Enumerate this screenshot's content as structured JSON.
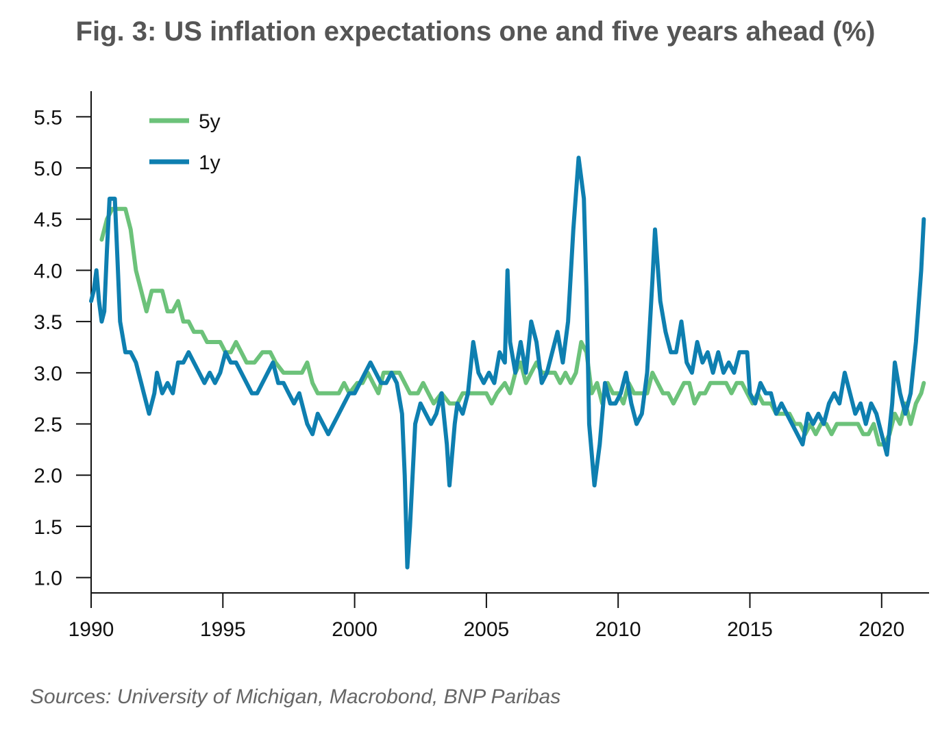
{
  "chart_data": {
    "type": "line",
    "title": "Fig. 3: US inflation expectations one and five years ahead (%)",
    "source": "Sources: University of Michigan, Macrobond, BNP Paribas",
    "xlim": [
      1990,
      2021.8
    ],
    "ylim": [
      0.85,
      5.75
    ],
    "x_ticks": [
      "1990",
      "1995",
      "2000",
      "2005",
      "2010",
      "2015",
      "2020"
    ],
    "y_ticks": [
      "1.0",
      "1.5",
      "2.0",
      "2.5",
      "3.0",
      "3.5",
      "4.0",
      "4.5",
      "5.0",
      "5.5"
    ],
    "grid": false,
    "legend_position": "top-left",
    "series": [
      {
        "name": "5y",
        "color": "#6cc27a",
        "points": [
          [
            1990.4,
            4.3
          ],
          [
            1990.6,
            4.5
          ],
          [
            1990.8,
            4.6
          ],
          [
            1991.0,
            4.6
          ],
          [
            1991.3,
            4.6
          ],
          [
            1991.5,
            4.4
          ],
          [
            1991.7,
            4.0
          ],
          [
            1991.9,
            3.8
          ],
          [
            1992.1,
            3.6
          ],
          [
            1992.3,
            3.8
          ],
          [
            1992.5,
            3.8
          ],
          [
            1992.7,
            3.8
          ],
          [
            1992.9,
            3.6
          ],
          [
            1993.1,
            3.6
          ],
          [
            1993.3,
            3.7
          ],
          [
            1993.5,
            3.5
          ],
          [
            1993.7,
            3.5
          ],
          [
            1993.9,
            3.4
          ],
          [
            1994.2,
            3.4
          ],
          [
            1994.4,
            3.3
          ],
          [
            1994.6,
            3.3
          ],
          [
            1994.9,
            3.3
          ],
          [
            1995.1,
            3.2
          ],
          [
            1995.3,
            3.2
          ],
          [
            1995.5,
            3.3
          ],
          [
            1995.7,
            3.2
          ],
          [
            1995.9,
            3.1
          ],
          [
            1996.2,
            3.1
          ],
          [
            1996.5,
            3.2
          ],
          [
            1996.8,
            3.2
          ],
          [
            1997.0,
            3.1
          ],
          [
            1997.3,
            3.0
          ],
          [
            1997.7,
            3.0
          ],
          [
            1998.0,
            3.0
          ],
          [
            1998.2,
            3.1
          ],
          [
            1998.4,
            2.9
          ],
          [
            1998.6,
            2.8
          ],
          [
            1998.9,
            2.8
          ],
          [
            1999.1,
            2.8
          ],
          [
            1999.4,
            2.8
          ],
          [
            1999.6,
            2.9
          ],
          [
            1999.8,
            2.8
          ],
          [
            2000.1,
            2.9
          ],
          [
            2000.3,
            2.9
          ],
          [
            2000.5,
            3.0
          ],
          [
            2000.7,
            2.9
          ],
          [
            2000.9,
            2.8
          ],
          [
            2001.1,
            3.0
          ],
          [
            2001.4,
            3.0
          ],
          [
            2001.7,
            3.0
          ],
          [
            2001.9,
            2.9
          ],
          [
            2002.1,
            2.8
          ],
          [
            2002.4,
            2.8
          ],
          [
            2002.6,
            2.9
          ],
          [
            2002.8,
            2.8
          ],
          [
            2003.0,
            2.7
          ],
          [
            2003.3,
            2.8
          ],
          [
            2003.6,
            2.7
          ],
          [
            2003.9,
            2.7
          ],
          [
            2004.1,
            2.8
          ],
          [
            2004.4,
            2.8
          ],
          [
            2004.7,
            2.8
          ],
          [
            2005.0,
            2.8
          ],
          [
            2005.2,
            2.7
          ],
          [
            2005.4,
            2.8
          ],
          [
            2005.7,
            2.9
          ],
          [
            2005.9,
            2.8
          ],
          [
            2006.1,
            3.0
          ],
          [
            2006.3,
            3.1
          ],
          [
            2006.5,
            2.9
          ],
          [
            2006.7,
            3.0
          ],
          [
            2006.9,
            3.1
          ],
          [
            2007.1,
            3.0
          ],
          [
            2007.4,
            3.0
          ],
          [
            2007.6,
            3.0
          ],
          [
            2007.8,
            2.9
          ],
          [
            2008.0,
            3.0
          ],
          [
            2008.2,
            2.9
          ],
          [
            2008.4,
            3.0
          ],
          [
            2008.6,
            3.3
          ],
          [
            2008.8,
            3.2
          ],
          [
            2009.0,
            2.8
          ],
          [
            2009.2,
            2.9
          ],
          [
            2009.4,
            2.7
          ],
          [
            2009.6,
            2.9
          ],
          [
            2009.8,
            2.8
          ],
          [
            2010.0,
            2.8
          ],
          [
            2010.2,
            2.7
          ],
          [
            2010.4,
            2.9
          ],
          [
            2010.6,
            2.8
          ],
          [
            2010.9,
            2.8
          ],
          [
            2011.1,
            2.8
          ],
          [
            2011.3,
            3.0
          ],
          [
            2011.5,
            2.9
          ],
          [
            2011.7,
            2.8
          ],
          [
            2011.9,
            2.8
          ],
          [
            2012.1,
            2.7
          ],
          [
            2012.3,
            2.8
          ],
          [
            2012.5,
            2.9
          ],
          [
            2012.7,
            2.9
          ],
          [
            2012.9,
            2.7
          ],
          [
            2013.1,
            2.8
          ],
          [
            2013.3,
            2.8
          ],
          [
            2013.5,
            2.9
          ],
          [
            2013.8,
            2.9
          ],
          [
            2014.1,
            2.9
          ],
          [
            2014.3,
            2.8
          ],
          [
            2014.5,
            2.9
          ],
          [
            2014.7,
            2.9
          ],
          [
            2014.9,
            2.8
          ],
          [
            2015.1,
            2.7
          ],
          [
            2015.3,
            2.8
          ],
          [
            2015.5,
            2.7
          ],
          [
            2015.8,
            2.7
          ],
          [
            2016.0,
            2.6
          ],
          [
            2016.2,
            2.6
          ],
          [
            2016.5,
            2.6
          ],
          [
            2016.7,
            2.5
          ],
          [
            2016.9,
            2.5
          ],
          [
            2017.1,
            2.4
          ],
          [
            2017.3,
            2.5
          ],
          [
            2017.5,
            2.4
          ],
          [
            2017.7,
            2.5
          ],
          [
            2017.9,
            2.5
          ],
          [
            2018.1,
            2.4
          ],
          [
            2018.3,
            2.5
          ],
          [
            2018.6,
            2.5
          ],
          [
            2018.9,
            2.5
          ],
          [
            2019.1,
            2.5
          ],
          [
            2019.3,
            2.4
          ],
          [
            2019.5,
            2.4
          ],
          [
            2019.7,
            2.5
          ],
          [
            2019.9,
            2.3
          ],
          [
            2020.1,
            2.3
          ],
          [
            2020.3,
            2.4
          ],
          [
            2020.5,
            2.6
          ],
          [
            2020.7,
            2.5
          ],
          [
            2020.9,
            2.7
          ],
          [
            2021.1,
            2.5
          ],
          [
            2021.3,
            2.7
          ],
          [
            2021.5,
            2.8
          ],
          [
            2021.6,
            2.9
          ]
        ]
      },
      {
        "name": "1y",
        "color": "#0e7fb0",
        "points": [
          [
            1990.0,
            3.7
          ],
          [
            1990.1,
            3.8
          ],
          [
            1990.2,
            4.0
          ],
          [
            1990.3,
            3.7
          ],
          [
            1990.4,
            3.5
          ],
          [
            1990.5,
            3.6
          ],
          [
            1990.6,
            4.2
          ],
          [
            1990.7,
            4.7
          ],
          [
            1990.9,
            4.7
          ],
          [
            1991.0,
            4.1
          ],
          [
            1991.1,
            3.5
          ],
          [
            1991.3,
            3.2
          ],
          [
            1991.5,
            3.2
          ],
          [
            1991.7,
            3.1
          ],
          [
            1991.9,
            2.9
          ],
          [
            1992.0,
            2.8
          ],
          [
            1992.2,
            2.6
          ],
          [
            1992.4,
            2.8
          ],
          [
            1992.5,
            3.0
          ],
          [
            1992.7,
            2.8
          ],
          [
            1992.9,
            2.9
          ],
          [
            1993.1,
            2.8
          ],
          [
            1993.3,
            3.1
          ],
          [
            1993.5,
            3.1
          ],
          [
            1993.7,
            3.2
          ],
          [
            1993.9,
            3.1
          ],
          [
            1994.1,
            3.0
          ],
          [
            1994.3,
            2.9
          ],
          [
            1994.5,
            3.0
          ],
          [
            1994.7,
            2.9
          ],
          [
            1994.9,
            3.0
          ],
          [
            1995.1,
            3.2
          ],
          [
            1995.3,
            3.1
          ],
          [
            1995.5,
            3.1
          ],
          [
            1995.7,
            3.0
          ],
          [
            1995.9,
            2.9
          ],
          [
            1996.1,
            2.8
          ],
          [
            1996.3,
            2.8
          ],
          [
            1996.5,
            2.9
          ],
          [
            1996.7,
            3.0
          ],
          [
            1996.9,
            3.1
          ],
          [
            1997.1,
            2.9
          ],
          [
            1997.3,
            2.9
          ],
          [
            1997.5,
            2.8
          ],
          [
            1997.7,
            2.7
          ],
          [
            1997.9,
            2.8
          ],
          [
            1998.1,
            2.6
          ],
          [
            1998.2,
            2.5
          ],
          [
            1998.4,
            2.4
          ],
          [
            1998.6,
            2.6
          ],
          [
            1998.8,
            2.5
          ],
          [
            1999.0,
            2.4
          ],
          [
            1999.2,
            2.5
          ],
          [
            1999.4,
            2.6
          ],
          [
            1999.6,
            2.7
          ],
          [
            1999.8,
            2.8
          ],
          [
            2000.0,
            2.8
          ],
          [
            2000.2,
            2.9
          ],
          [
            2000.4,
            3.0
          ],
          [
            2000.6,
            3.1
          ],
          [
            2000.8,
            3.0
          ],
          [
            2001.0,
            2.9
          ],
          [
            2001.2,
            2.9
          ],
          [
            2001.4,
            3.0
          ],
          [
            2001.6,
            2.9
          ],
          [
            2001.8,
            2.6
          ],
          [
            2001.9,
            2.0
          ],
          [
            2002.0,
            1.1
          ],
          [
            2002.1,
            1.5
          ],
          [
            2002.3,
            2.5
          ],
          [
            2002.5,
            2.7
          ],
          [
            2002.7,
            2.6
          ],
          [
            2002.9,
            2.5
          ],
          [
            2003.1,
            2.6
          ],
          [
            2003.3,
            2.8
          ],
          [
            2003.5,
            2.3
          ],
          [
            2003.6,
            1.9
          ],
          [
            2003.8,
            2.5
          ],
          [
            2003.9,
            2.7
          ],
          [
            2004.1,
            2.6
          ],
          [
            2004.3,
            2.8
          ],
          [
            2004.5,
            3.3
          ],
          [
            2004.7,
            3.0
          ],
          [
            2004.9,
            2.9
          ],
          [
            2005.1,
            3.0
          ],
          [
            2005.3,
            2.9
          ],
          [
            2005.5,
            3.2
          ],
          [
            2005.7,
            3.1
          ],
          [
            2005.8,
            4.0
          ],
          [
            2005.9,
            3.3
          ],
          [
            2006.1,
            3.0
          ],
          [
            2006.3,
            3.3
          ],
          [
            2006.5,
            3.0
          ],
          [
            2006.7,
            3.5
          ],
          [
            2006.9,
            3.3
          ],
          [
            2007.1,
            2.9
          ],
          [
            2007.3,
            3.0
          ],
          [
            2007.5,
            3.2
          ],
          [
            2007.7,
            3.4
          ],
          [
            2007.9,
            3.1
          ],
          [
            2008.1,
            3.5
          ],
          [
            2008.3,
            4.4
          ],
          [
            2008.5,
            5.1
          ],
          [
            2008.7,
            4.7
          ],
          [
            2008.8,
            3.8
          ],
          [
            2008.9,
            2.5
          ],
          [
            2009.1,
            1.9
          ],
          [
            2009.3,
            2.3
          ],
          [
            2009.5,
            2.9
          ],
          [
            2009.7,
            2.7
          ],
          [
            2009.9,
            2.7
          ],
          [
            2010.1,
            2.8
          ],
          [
            2010.3,
            3.0
          ],
          [
            2010.5,
            2.7
          ],
          [
            2010.7,
            2.5
          ],
          [
            2010.9,
            2.6
          ],
          [
            2011.1,
            3.0
          ],
          [
            2011.3,
            3.9
          ],
          [
            2011.4,
            4.4
          ],
          [
            2011.6,
            3.7
          ],
          [
            2011.8,
            3.4
          ],
          [
            2012.0,
            3.2
          ],
          [
            2012.2,
            3.2
          ],
          [
            2012.4,
            3.5
          ],
          [
            2012.6,
            3.1
          ],
          [
            2012.8,
            3.0
          ],
          [
            2013.0,
            3.3
          ],
          [
            2013.2,
            3.1
          ],
          [
            2013.4,
            3.2
          ],
          [
            2013.6,
            3.0
          ],
          [
            2013.8,
            3.2
          ],
          [
            2014.0,
            3.0
          ],
          [
            2014.2,
            3.1
          ],
          [
            2014.4,
            3.0
          ],
          [
            2014.6,
            3.2
          ],
          [
            2014.9,
            3.2
          ],
          [
            2015.0,
            2.8
          ],
          [
            2015.2,
            2.7
          ],
          [
            2015.4,
            2.9
          ],
          [
            2015.6,
            2.8
          ],
          [
            2015.8,
            2.8
          ],
          [
            2016.0,
            2.6
          ],
          [
            2016.2,
            2.7
          ],
          [
            2016.4,
            2.6
          ],
          [
            2016.6,
            2.5
          ],
          [
            2016.8,
            2.4
          ],
          [
            2017.0,
            2.3
          ],
          [
            2017.2,
            2.6
          ],
          [
            2017.4,
            2.5
          ],
          [
            2017.6,
            2.6
          ],
          [
            2017.8,
            2.5
          ],
          [
            2018.0,
            2.7
          ],
          [
            2018.2,
            2.8
          ],
          [
            2018.4,
            2.7
          ],
          [
            2018.6,
            3.0
          ],
          [
            2018.8,
            2.8
          ],
          [
            2019.0,
            2.6
          ],
          [
            2019.2,
            2.7
          ],
          [
            2019.4,
            2.5
          ],
          [
            2019.6,
            2.7
          ],
          [
            2019.8,
            2.6
          ],
          [
            2020.0,
            2.4
          ],
          [
            2020.2,
            2.2
          ],
          [
            2020.4,
            2.7
          ],
          [
            2020.5,
            3.1
          ],
          [
            2020.7,
            2.8
          ],
          [
            2020.9,
            2.6
          ],
          [
            2021.1,
            2.8
          ],
          [
            2021.3,
            3.3
          ],
          [
            2021.5,
            4.0
          ],
          [
            2021.6,
            4.5
          ]
        ]
      }
    ]
  }
}
